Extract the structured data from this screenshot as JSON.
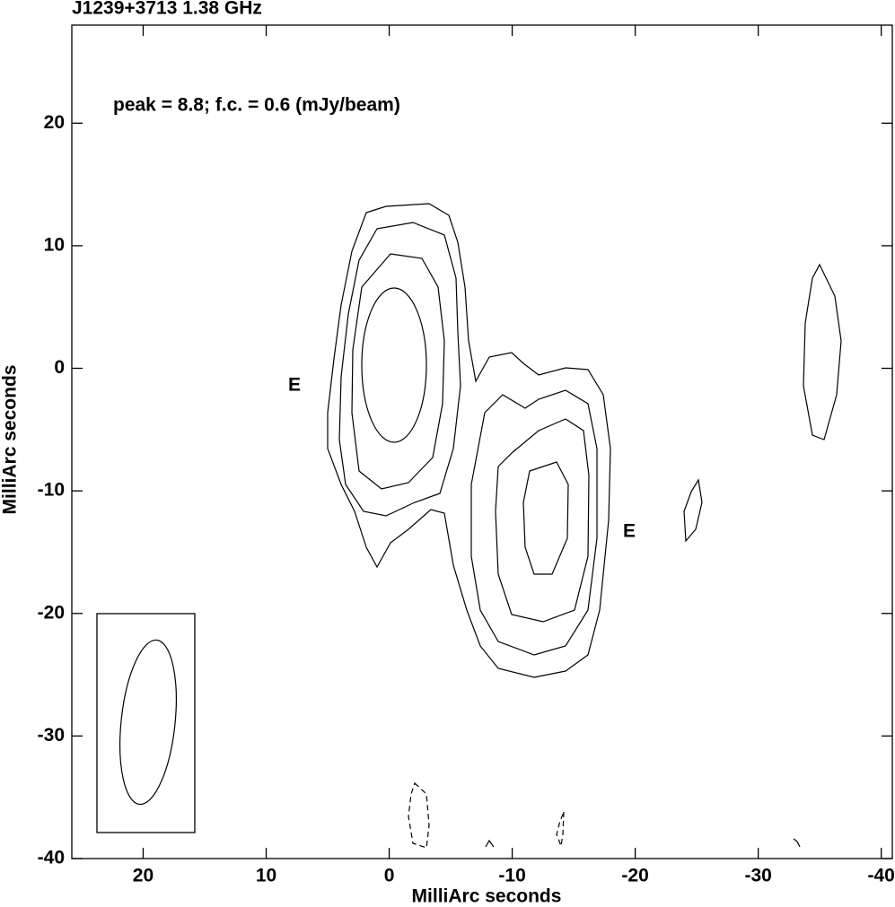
{
  "chart_data": {
    "type": "contour",
    "title": "J1239+3713   1.38 GHz",
    "annotation": "peak = 8.8;  f.c. = 0.6 (mJy/beam)",
    "component_labels": [
      "E",
      "E"
    ],
    "xlabel": "MilliArc seconds",
    "ylabel": "MilliArc seconds",
    "xlim": [
      25.8,
      -40.9
    ],
    "ylim": [
      -40,
      28
    ],
    "xticks": [
      20,
      10,
      0,
      -10,
      -20,
      -30,
      -40
    ],
    "yticks": [
      20,
      10,
      0,
      -10,
      -20,
      -30,
      -40
    ]
  }
}
